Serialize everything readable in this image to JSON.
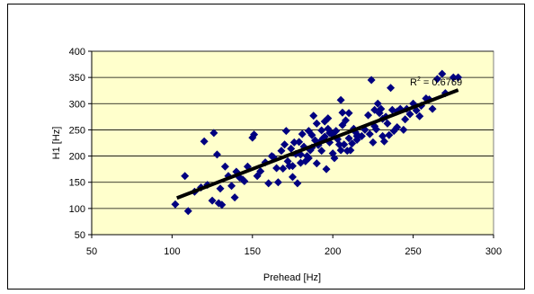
{
  "chart_data": {
    "type": "scatter",
    "title": "",
    "xlabel": "Prehead [Hz]",
    "ylabel": "H1 [Hz]",
    "xlim": [
      50,
      300
    ],
    "ylim": [
      50,
      400
    ],
    "xticks": [
      "50",
      "100",
      "150",
      "200",
      "250",
      "300"
    ],
    "yticks": [
      "50",
      "100",
      "150",
      "200",
      "250",
      "300",
      "350",
      "400"
    ],
    "grid": "horizontal",
    "legend": "none",
    "plot_background": "#ffffcc",
    "marker_color": "#000080",
    "trendline_color": "#000000",
    "trendline": {
      "x": [
        103,
        278
      ],
      "y": [
        120,
        326
      ]
    },
    "annotation": {
      "text": "R² = 0.6769",
      "x": 248,
      "y": 342
    },
    "series": [
      {
        "x": [
          102,
          108,
          110,
          114,
          118,
          120,
          122,
          125,
          126,
          128,
          129,
          130,
          131,
          133,
          135,
          137,
          139,
          140,
          142,
          144,
          145,
          147,
          150,
          151,
          153,
          155,
          158,
          160,
          162,
          163,
          165,
          166,
          168,
          169,
          170,
          171,
          172,
          173,
          174,
          175,
          176,
          177,
          178,
          179,
          180,
          181,
          182,
          183,
          184,
          185,
          186,
          187,
          188,
          189,
          190,
          190,
          191,
          192,
          193,
          194,
          195,
          196,
          197,
          198,
          199,
          200,
          201,
          202,
          203,
          204,
          205,
          206,
          207,
          208,
          209,
          210,
          211,
          212,
          213,
          214,
          215,
          216,
          218,
          220,
          222,
          223,
          224,
          225,
          226,
          227,
          228,
          229,
          230,
          231,
          232,
          233,
          234,
          235,
          236,
          237,
          238,
          240,
          242,
          244,
          245,
          246,
          248,
          250,
          252,
          254,
          255,
          258,
          260,
          262,
          265,
          268,
          270,
          275,
          278,
          195,
          200,
          205,
          187,
          193,
          210,
          180,
          175,
          198,
          215,
          226,
          231,
          240,
          206,
          197,
          185
        ],
        "y": [
          108,
          162,
          95,
          132,
          140,
          228,
          145,
          115,
          244,
          203,
          110,
          138,
          107,
          180,
          162,
          143,
          121,
          170,
          159,
          155,
          152,
          180,
          235,
          241,
          162,
          171,
          188,
          148,
          200,
          198,
          177,
          150,
          210,
          176,
          222,
          248,
          190,
          181,
          214,
          160,
          226,
          204,
          148,
          227,
          203,
          242,
          218,
          190,
          200,
          248,
          211,
          240,
          277,
          230,
          186,
          262,
          221,
          227,
          249,
          234,
          266,
          175,
          272,
          226,
          243,
          205,
          196,
          248,
          232,
          222,
          307,
          283,
          222,
          268,
          210,
          282,
          211,
          224,
          252,
          246,
          231,
          238,
          238,
          250,
          278,
          242,
          345,
          226,
          257,
          251,
          300,
          282,
          290,
          238,
          228,
          275,
          262,
          240,
          330,
          288,
          248,
          255,
          290,
          250,
          270,
          290,
          280,
          300,
          287,
          276,
          296,
          310,
          308,
          290,
          347,
          357,
          320,
          350,
          350,
          237,
          242,
          211,
          216,
          210,
          234,
          187,
          181,
          244,
          238,
          288,
          271,
          285,
          259,
          252,
          196
        ]
      }
    ]
  }
}
